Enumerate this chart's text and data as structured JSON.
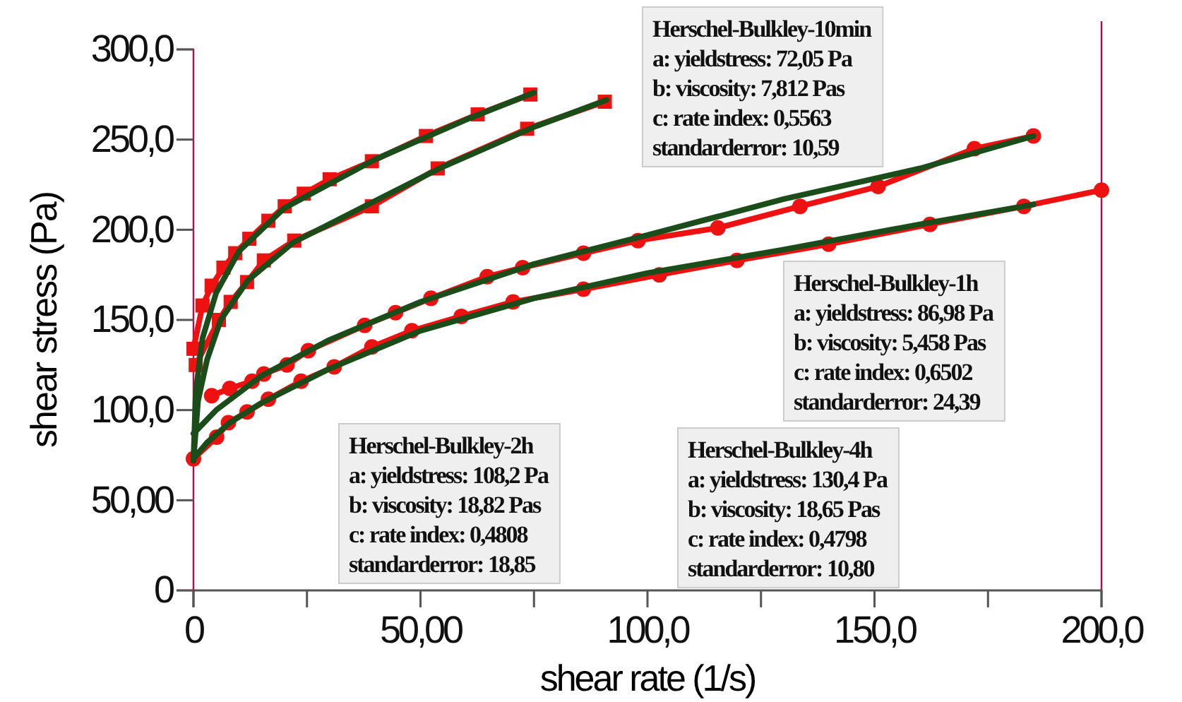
{
  "chart_data": {
    "type": "line",
    "xlabel": "shear rate (1/s)",
    "ylabel": "shear stress (Pa)",
    "xlim": [
      0,
      200
    ],
    "ylim": [
      0,
      300
    ],
    "xticks": [
      0,
      {
        "value": 25,
        "label": null
      },
      {
        "value": 50,
        "label": "50,00"
      },
      {
        "value": 75,
        "label": null
      },
      {
        "value": 100,
        "label": "100,0"
      },
      {
        "value": 125,
        "label": null
      },
      {
        "value": 150,
        "label": "150,0"
      },
      {
        "value": 175,
        "label": null
      },
      {
        "value": 200,
        "label": "200,0"
      }
    ],
    "yticks": [
      0,
      {
        "value": 50,
        "label": "50,00"
      },
      {
        "value": 100,
        "label": "100,0"
      },
      {
        "value": 150,
        "label": "150,0"
      },
      {
        "value": 200,
        "label": "200,0"
      },
      {
        "value": 250,
        "label": "250,0"
      },
      {
        "value": 300,
        "label": "300,0"
      }
    ],
    "grid": false,
    "series": [
      {
        "color": "#ee1111",
        "marker": "square",
        "x": [
          0,
          2,
          4,
          6.6,
          9.2,
          12.3,
          16.5,
          20.1,
          24.3,
          30,
          39.3,
          51.2,
          62.6,
          74.2
        ],
        "values": [
          134,
          158,
          169,
          179,
          187,
          195,
          205,
          213,
          220,
          228,
          238,
          252,
          264,
          275
        ]
      },
      {
        "color": "#ee1111",
        "marker": "square",
        "x": [
          0.5,
          5.6,
          8.2,
          11.8,
          15.5,
          22.2,
          39.3,
          53.8,
          73.5,
          90.6
        ],
        "values": [
          125,
          150,
          160,
          171,
          183,
          194,
          213,
          234,
          256,
          271
        ]
      },
      {
        "color": "#ee1111",
        "marker": "circle",
        "x": [
          4,
          8,
          12.9,
          15.5,
          20.6,
          25.3,
          37.7,
          44.5,
          52.3,
          64.7,
          72.5,
          85.9,
          97.9,
          115.5,
          133.6,
          150.8,
          172,
          185
        ],
        "values": [
          108,
          112,
          116,
          120,
          125,
          133,
          147,
          154,
          162,
          174,
          179,
          187,
          194,
          201,
          213,
          224,
          245,
          252
        ]
      },
      {
        "color": "#ee1111",
        "marker": "circle",
        "x": [
          0,
          5.1,
          7.7,
          11.8,
          16.5,
          23.7,
          31,
          39.3,
          48.1,
          59,
          70.4,
          85.9,
          102.6,
          119.7,
          139.9,
          162.2,
          182.9,
          200
        ],
        "values": [
          73,
          85,
          93,
          99,
          106,
          116,
          124,
          135,
          144,
          152,
          160,
          167,
          175,
          183,
          192,
          203,
          213,
          222
        ]
      },
      {
        "color": "#1b4d1b",
        "marker": "none",
        "x": [
          0,
          0.5,
          2,
          5,
          10,
          20,
          40,
          60,
          75
        ],
        "values": [
          72,
          110,
          140,
          165,
          188,
          212,
          239,
          261,
          276
        ]
      },
      {
        "color": "#1b4d1b",
        "marker": "none",
        "x": [
          0,
          1,
          3,
          6,
          12,
          22,
          40,
          55,
          75,
          91
        ],
        "values": [
          72,
          105,
          128,
          150,
          172,
          193,
          216,
          235,
          257,
          272
        ]
      },
      {
        "color": "#1b4d1b",
        "marker": "none",
        "x": [
          0,
          5,
          15,
          30,
          50,
          75,
          100,
          130,
          160,
          185
        ],
        "values": [
          87,
          100,
          119,
          139,
          160,
          181,
          197,
          217,
          234,
          252
        ]
      },
      {
        "color": "#1b4d1b",
        "marker": "none",
        "x": [
          0,
          3,
          8,
          15,
          30,
          50,
          75,
          100,
          130,
          160,
          185
        ],
        "values": [
          73,
          82,
          93,
          104,
          123,
          144,
          162,
          176,
          189,
          203,
          214
        ]
      }
    ],
    "annotations": [
      "Herschel-Bulkley-10min\na: yieldstress: 72,05 Pa\nb: viscosity: 7,812 Pas\nc: rate index: 0,5563\nstandarderror: 10,59",
      "Herschel-Bulkley-1h\na: yieldstress: 86,98 Pa\nb: viscosity: 5,458 Pas\nc: rate index: 0,6502\nstandarderror: 24,39",
      "Herschel-Bulkley-2h\na: yieldstress: 108,2 Pa\nb: viscosity: 18,82 Pas\nc: rate index: 0,4808\nstandarderror: 18,85",
      "Herschel-Bulkley-4h\na: yieldstress: 130,4 Pa\nb: viscosity: 18,65 Pas\nc: rate index: 0,4798\nstandarderror: 10,80"
    ]
  }
}
